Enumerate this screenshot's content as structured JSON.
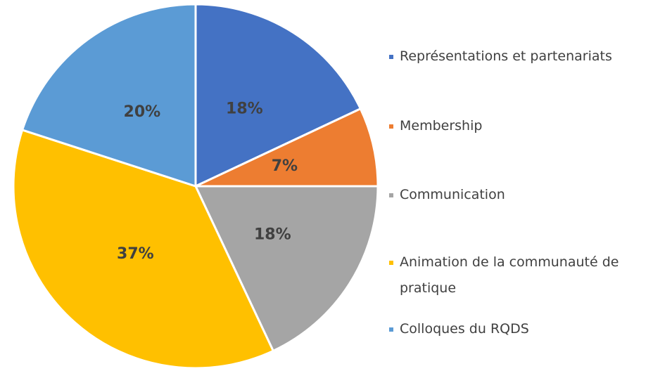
{
  "chart_data": {
    "type": "pie",
    "categories": [
      "Représentations et partenariats",
      "Membership",
      "Communication",
      "Animation de la communauté de pratique",
      "Colloques du RQDS"
    ],
    "values": [
      18,
      7,
      18,
      37,
      20
    ],
    "value_labels": [
      "18%",
      "7%",
      "18%",
      "37%",
      "20%"
    ],
    "colors": [
      "#4472c4",
      "#ed7d31",
      "#a5a5a5",
      "#ffc000",
      "#5b9bd5"
    ],
    "legend": "right"
  }
}
